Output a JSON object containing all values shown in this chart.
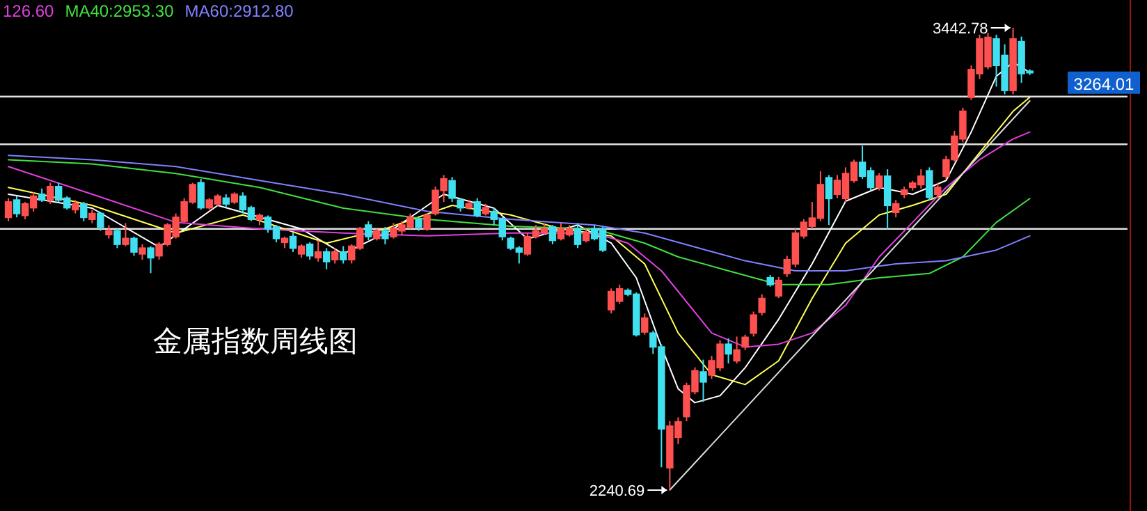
{
  "chart_data": {
    "type": "candlestick",
    "categories": [
      null,
      null,
      null,
      null,
      null,
      null,
      null,
      null,
      null,
      null,
      null,
      null,
      null,
      null,
      null,
      null,
      null,
      null,
      null,
      null,
      null,
      null,
      null,
      null,
      null,
      null,
      null,
      null,
      null,
      null,
      null,
      null,
      null,
      null,
      null,
      null,
      null,
      null,
      null,
      null,
      null,
      null,
      null,
      null,
      null,
      null,
      null,
      null,
      null,
      null,
      null,
      null,
      null,
      null,
      null,
      null,
      null,
      null,
      null,
      null,
      null,
      null,
      null,
      null,
      null,
      null,
      null,
      null,
      null,
      null,
      null,
      null,
      null,
      null,
      null,
      null,
      null,
      null,
      null,
      null,
      null,
      null,
      null,
      null,
      null,
      null,
      null,
      null,
      null,
      null,
      null,
      null,
      null,
      null,
      null,
      null,
      null,
      null,
      null,
      null,
      null,
      null,
      null,
      null,
      null,
      null,
      null,
      null,
      null,
      null,
      null,
      null,
      null,
      null,
      null,
      null,
      null,
      null,
      null,
      null,
      null,
      null,
      null
    ],
    "ohlc": [
      [
        2950,
        3000,
        2940,
        2990
      ],
      [
        2995,
        3005,
        2950,
        2960
      ],
      [
        2955,
        2990,
        2945,
        2985
      ],
      [
        2975,
        3015,
        2965,
        3005
      ],
      [
        3010,
        3025,
        2990,
        2995
      ],
      [
        2995,
        3040,
        2985,
        3030
      ],
      [
        3030,
        3040,
        2990,
        2995
      ],
      [
        3000,
        3005,
        2970,
        2975
      ],
      [
        2970,
        2995,
        2960,
        2985
      ],
      [
        2985,
        2990,
        2940,
        2950
      ],
      [
        2945,
        2970,
        2935,
        2960
      ],
      [
        2960,
        2965,
        2915,
        2925
      ],
      [
        2905,
        2930,
        2895,
        2915
      ],
      [
        2915,
        2920,
        2870,
        2880
      ],
      [
        2880,
        2935,
        2875,
        2895
      ],
      [
        2895,
        2900,
        2850,
        2860
      ],
      [
        2855,
        2880,
        2840,
        2870
      ],
      [
        2870,
        2875,
        2805,
        2845
      ],
      [
        2850,
        2885,
        2840,
        2880
      ],
      [
        2880,
        2935,
        2875,
        2930
      ],
      [
        2900,
        2960,
        2895,
        2950
      ],
      [
        2940,
        3000,
        2935,
        2990
      ],
      [
        2990,
        3040,
        2985,
        3035
      ],
      [
        3040,
        3050,
        2970,
        2975
      ],
      [
        2975,
        3000,
        2970,
        2995
      ],
      [
        2985,
        3010,
        2980,
        3005
      ],
      [
        3000,
        3010,
        2975,
        2985
      ],
      [
        2990,
        3015,
        2985,
        3010
      ],
      [
        3005,
        3015,
        2960,
        2970
      ],
      [
        2975,
        2980,
        2940,
        2945
      ],
      [
        2945,
        2960,
        2930,
        2955
      ],
      [
        2950,
        2955,
        2910,
        2920
      ],
      [
        2925,
        2930,
        2885,
        2895
      ],
      [
        2885,
        2900,
        2870,
        2895
      ],
      [
        2900,
        2910,
        2860,
        2870
      ],
      [
        2855,
        2880,
        2845,
        2875
      ],
      [
        2880,
        2885,
        2840,
        2850
      ],
      [
        2845,
        2890,
        2835,
        2860
      ],
      [
        2860,
        2870,
        2815,
        2835
      ],
      [
        2840,
        2870,
        2830,
        2860
      ],
      [
        2860,
        2875,
        2830,
        2840
      ],
      [
        2840,
        2880,
        2830,
        2875
      ],
      [
        2870,
        2925,
        2865,
        2920
      ],
      [
        2930,
        2940,
        2890,
        2900
      ],
      [
        2895,
        2920,
        2890,
        2915
      ],
      [
        2915,
        2925,
        2880,
        2895
      ],
      [
        2900,
        2935,
        2895,
        2920
      ],
      [
        2915,
        2940,
        2905,
        2930
      ],
      [
        2925,
        2960,
        2920,
        2950
      ],
      [
        2945,
        2950,
        2915,
        2925
      ],
      [
        2920,
        2960,
        2915,
        2955
      ],
      [
        2960,
        3030,
        2955,
        3020
      ],
      [
        3020,
        3060,
        2990,
        3050
      ],
      [
        3045,
        3055,
        2990,
        3000
      ],
      [
        2995,
        3000,
        2965,
        2975
      ],
      [
        2975,
        2995,
        2970,
        2985
      ],
      [
        2990,
        3000,
        2950,
        2955
      ],
      [
        2960,
        2985,
        2955,
        2975
      ],
      [
        2965,
        2975,
        2930,
        2945
      ],
      [
        2945,
        2950,
        2890,
        2900
      ],
      [
        2895,
        2900,
        2865,
        2870
      ],
      [
        2870,
        2875,
        2830,
        2860
      ],
      [
        2855,
        2910,
        2850,
        2900
      ],
      [
        2900,
        2930,
        2895,
        2915
      ],
      [
        2910,
        2935,
        2905,
        2920
      ],
      [
        2925,
        2930,
        2880,
        2890
      ],
      [
        2895,
        2935,
        2890,
        2920
      ],
      [
        2905,
        2930,
        2900,
        2920
      ],
      [
        2920,
        2935,
        2870,
        2880
      ],
      [
        2890,
        2920,
        2885,
        2910
      ],
      [
        2920,
        2930,
        2890,
        2895
      ],
      [
        2920,
        2925,
        2860,
        2865
      ],
      [
        2710,
        2765,
        2700,
        2757
      ],
      [
        2732,
        2775,
        2725,
        2764
      ],
      [
        2760,
        2765,
        2745,
        2750
      ],
      [
        2750,
        2755,
        2640,
        2645
      ],
      [
        2652,
        2700,
        2645,
        2688
      ],
      [
        2649,
        2655,
        2595,
        2613
      ],
      [
        2613,
        2620,
        2300,
        2400
      ],
      [
        2299,
        2420,
        2240.69,
        2407
      ],
      [
        2378,
        2430,
        2360,
        2418
      ],
      [
        2432,
        2520,
        2420,
        2512
      ],
      [
        2497,
        2560,
        2490,
        2551
      ],
      [
        2548,
        2580,
        2470,
        2522
      ],
      [
        2540,
        2590,
        2530,
        2577
      ],
      [
        2559,
        2630,
        2550,
        2620
      ],
      [
        2620,
        2635,
        2570,
        2595
      ],
      [
        2577,
        2640,
        2570,
        2605
      ],
      [
        2613,
        2645,
        2605,
        2638
      ],
      [
        2649,
        2705,
        2640,
        2696
      ],
      [
        2703,
        2750,
        2695,
        2739
      ],
      [
        2793,
        2800,
        2770,
        2775
      ],
      [
        2746,
        2795,
        2740,
        2786
      ],
      [
        2804,
        2850,
        2795,
        2840
      ],
      [
        2829,
        2920,
        2820,
        2909
      ],
      [
        2902,
        2945,
        2895,
        2937
      ],
      [
        2927,
        2990,
        2920,
        2948
      ],
      [
        2948,
        3070,
        2940,
        3035
      ],
      [
        3053,
        3060,
        2930,
        2999
      ],
      [
        3010,
        3060,
        3000,
        3046
      ],
      [
        2999,
        3080,
        2990,
        3064
      ],
      [
        3046,
        3100,
        3040,
        3093
      ],
      [
        3093,
        3136,
        3050,
        3057
      ],
      [
        3071,
        3080,
        3020,
        3028
      ],
      [
        3028,
        3065,
        3020,
        3057
      ],
      [
        3057,
        3075,
        2919,
        2981
      ],
      [
        2963,
        2995,
        2950,
        2985
      ],
      [
        3010,
        3030,
        3000,
        3021
      ],
      [
        3028,
        3045,
        3020,
        3039
      ],
      [
        3035,
        3075,
        3025,
        3057
      ],
      [
        3071,
        3080,
        2995,
        3002
      ],
      [
        3010,
        3040,
        3000,
        3028
      ],
      [
        3057,
        3110,
        3050,
        3100
      ],
      [
        3100,
        3175,
        3095,
        3161
      ],
      [
        3154,
        3235,
        3145,
        3226
      ],
      [
        3262,
        3345,
        3255,
        3334
      ],
      [
        3324,
        3425,
        3310,
        3414
      ],
      [
        3342,
        3430,
        3335,
        3418
      ],
      [
        3414,
        3425,
        3290,
        3345
      ],
      [
        3371,
        3400,
        3270,
        3280
      ],
      [
        3280,
        3442.78,
        3270,
        3414
      ],
      [
        3407,
        3420,
        3300,
        3324
      ],
      [
        3330,
        3335,
        3320,
        3326
      ]
    ],
    "series": [
      {
        "type": "line",
        "color": "#ffffff",
        "values": [
          3010,
          null,
          null,
          null,
          null,
          null,
          null,
          null,
          null,
          null,
          2974,
          null,
          null,
          null,
          null,
          null,
          null,
          null,
          2873,
          null,
          null,
          null,
          null,
          null,
          null,
          2981,
          null,
          null,
          null,
          null,
          null,
          null,
          null,
          null,
          null,
          2920,
          null,
          null,
          null,
          null,
          2855,
          null,
          null,
          null,
          null,
          null,
          2920,
          null,
          null,
          null,
          null,
          null,
          3010,
          null,
          null,
          null,
          null,
          null,
          2974,
          null,
          null,
          null,
          2894,
          null,
          null,
          null,
          null,
          null,
          2930,
          null,
          null,
          null,
          2883,
          null,
          null,
          2793,
          null,
          null,
          2613,
          null,
          2504,
          null,
          2468,
          null,
          null,
          2486,
          null,
          null,
          2559,
          null,
          null,
          null,
          2685,
          null,
          null,
          null,
          2829,
          null,
          null,
          null,
          2992,
          null,
          null,
          null,
          3028,
          null,
          null,
          null,
          3010,
          null,
          null,
          null,
          3046,
          null,
          null,
          3172,
          null,
          null,
          3317,
          null,
          3353,
          null,
          3327
        ]
      },
      {
        "type": "line",
        "color": "#ffff55",
        "values": [
          3028,
          null,
          null,
          null,
          null,
          null,
          null,
          null,
          null,
          null,
          2981,
          null,
          null,
          null,
          null,
          null,
          null,
          null,
          null,
          null,
          2909,
          null,
          null,
          null,
          null,
          null,
          null,
          null,
          2956,
          null,
          null,
          null,
          null,
          null,
          null,
          null,
          null,
          null,
          2883,
          null,
          null,
          null,
          null,
          null,
          null,
          2920,
          null,
          null,
          null,
          null,
          null,
          null,
          null,
          2981,
          null,
          null,
          null,
          null,
          null,
          null,
          2956,
          null,
          null,
          null,
          null,
          null,
          2920,
          null,
          null,
          null,
          null,
          null,
          2902,
          null,
          null,
          null,
          2829,
          null,
          null,
          null,
          2649,
          null,
          null,
          null,
          2541,
          null,
          null,
          null,
          2515,
          null,
          null,
          null,
          2577,
          null,
          null,
          null,
          2739,
          null,
          null,
          null,
          2883,
          null,
          null,
          null,
          2956,
          null,
          null,
          null,
          2981,
          null,
          null,
          null,
          3010,
          null,
          null,
          null,
          3118,
          null,
          null,
          null,
          3226,
          null,
          3262
        ]
      },
      {
        "type": "line",
        "name": "126.60",
        "color": "#e040e0",
        "values": [
          3082,
          null,
          null,
          null,
          null,
          null,
          null,
          null,
          null,
          null,
          3010,
          null,
          null,
          null,
          null,
          null,
          null,
          null,
          null,
          null,
          2937,
          null,
          null,
          null,
          null,
          null,
          null,
          null,
          null,
          null,
          2920,
          null,
          null,
          null,
          null,
          null,
          null,
          null,
          null,
          null,
          2909,
          null,
          null,
          null,
          null,
          null,
          null,
          null,
          null,
          null,
          2902,
          null,
          null,
          null,
          null,
          null,
          null,
          null,
          null,
          null,
          2909,
          null,
          null,
          null,
          null,
          null,
          null,
          null,
          null,
          null,
          2909,
          null,
          null,
          null,
          2883,
          null,
          null,
          null,
          2811,
          null,
          null,
          null,
          null,
          null,
          2649,
          null,
          null,
          null,
          2613,
          null,
          null,
          null,
          2620,
          null,
          null,
          null,
          2649,
          null,
          null,
          null,
          2721,
          null,
          null,
          null,
          2847,
          null,
          null,
          null,
          2937,
          null,
          null,
          null,
          3028,
          null,
          null,
          null,
          3100,
          null,
          null,
          null,
          3154,
          null,
          3172
        ]
      },
      {
        "type": "line",
        "name": "MA40:2953.30",
        "color": "#40e040",
        "values": [
          3100,
          null,
          null,
          null,
          null,
          null,
          null,
          null,
          null,
          null,
          3089,
          null,
          null,
          null,
          null,
          null,
          null,
          null,
          null,
          null,
          3064,
          null,
          null,
          null,
          null,
          null,
          null,
          null,
          null,
          null,
          3028,
          null,
          null,
          null,
          null,
          null,
          null,
          null,
          null,
          null,
          2974,
          null,
          null,
          null,
          null,
          null,
          null,
          null,
          null,
          null,
          2945,
          null,
          null,
          null,
          null,
          null,
          null,
          null,
          null,
          null,
          2927,
          null,
          null,
          null,
          null,
          null,
          null,
          null,
          null,
          null,
          2920,
          null,
          null,
          null,
          null,
          null,
          2883,
          null,
          null,
          null,
          2847,
          null,
          null,
          null,
          null,
          null,
          2811,
          null,
          null,
          null,
          null,
          null,
          2775,
          null,
          null,
          null,
          null,
          null,
          2775,
          null,
          null,
          null,
          null,
          null,
          2793,
          null,
          null,
          null,
          null,
          null,
          2804,
          null,
          null,
          null,
          2847,
          null,
          null,
          null,
          2937,
          null,
          null,
          null,
          2999
        ]
      },
      {
        "type": "line",
        "name": "MA60:2912.80",
        "color": "#8080ff",
        "values": [
          3111,
          null,
          null,
          null,
          null,
          null,
          null,
          null,
          null,
          null,
          3100,
          null,
          null,
          null,
          null,
          null,
          null,
          null,
          null,
          null,
          3082,
          null,
          null,
          null,
          null,
          null,
          null,
          null,
          null,
          null,
          3046,
          null,
          null,
          null,
          null,
          null,
          null,
          null,
          null,
          null,
          3010,
          null,
          null,
          null,
          null,
          null,
          null,
          null,
          null,
          null,
          2966,
          null,
          null,
          null,
          null,
          null,
          null,
          null,
          null,
          null,
          2945,
          null,
          null,
          null,
          null,
          null,
          null,
          null,
          null,
          null,
          2930,
          null,
          null,
          null,
          null,
          null,
          2909,
          null,
          null,
          null,
          null,
          null,
          2873,
          null,
          null,
          null,
          null,
          null,
          2837,
          null,
          null,
          null,
          null,
          null,
          2811,
          null,
          null,
          null,
          null,
          null,
          2811,
          null,
          null,
          null,
          null,
          null,
          2829,
          null,
          null,
          null,
          null,
          null,
          2837,
          null,
          null,
          null,
          null,
          null,
          2865,
          null,
          null,
          null,
          2902
        ]
      },
      {
        "type": "line",
        "color": "#dddddd",
        "values": [
          null,
          null,
          null,
          null,
          null,
          null,
          null,
          null,
          null,
          null,
          null,
          null,
          null,
          null,
          null,
          null,
          null,
          null,
          null,
          null,
          null,
          null,
          null,
          null,
          null,
          null,
          null,
          null,
          null,
          null,
          null,
          null,
          null,
          null,
          null,
          null,
          null,
          null,
          null,
          null,
          null,
          null,
          null,
          null,
          null,
          null,
          null,
          null,
          null,
          null,
          null,
          null,
          null,
          null,
          null,
          null,
          null,
          null,
          null,
          null,
          null,
          null,
          null,
          null,
          null,
          null,
          null,
          null,
          null,
          null,
          null,
          null,
          null,
          null,
          null,
          null,
          null,
          null,
          null,
          2241,
          null,
          null,
          null,
          null,
          null,
          null,
          null,
          null,
          null,
          null,
          null,
          null,
          null,
          null,
          null,
          null,
          null,
          null,
          null,
          null,
          null,
          null,
          null,
          null,
          null,
          null,
          null,
          null,
          null,
          null,
          null,
          null,
          null,
          null,
          null,
          null,
          null,
          null,
          null,
          null,
          null,
          null,
          3253
        ]
      }
    ],
    "legend": "top left",
    "tick_labels": false,
    "ref_lines": [
      {
        "axis": "y",
        "value": 3264.01,
        "label": "3264.01"
      },
      {
        "axis": "y",
        "value": 3140,
        "label": null
      },
      {
        "axis": "y",
        "value": 2920,
        "label": null
      }
    ],
    "annotations": [
      "3442.78",
      "2240.69",
      "金属指数周线图"
    ]
  }
}
